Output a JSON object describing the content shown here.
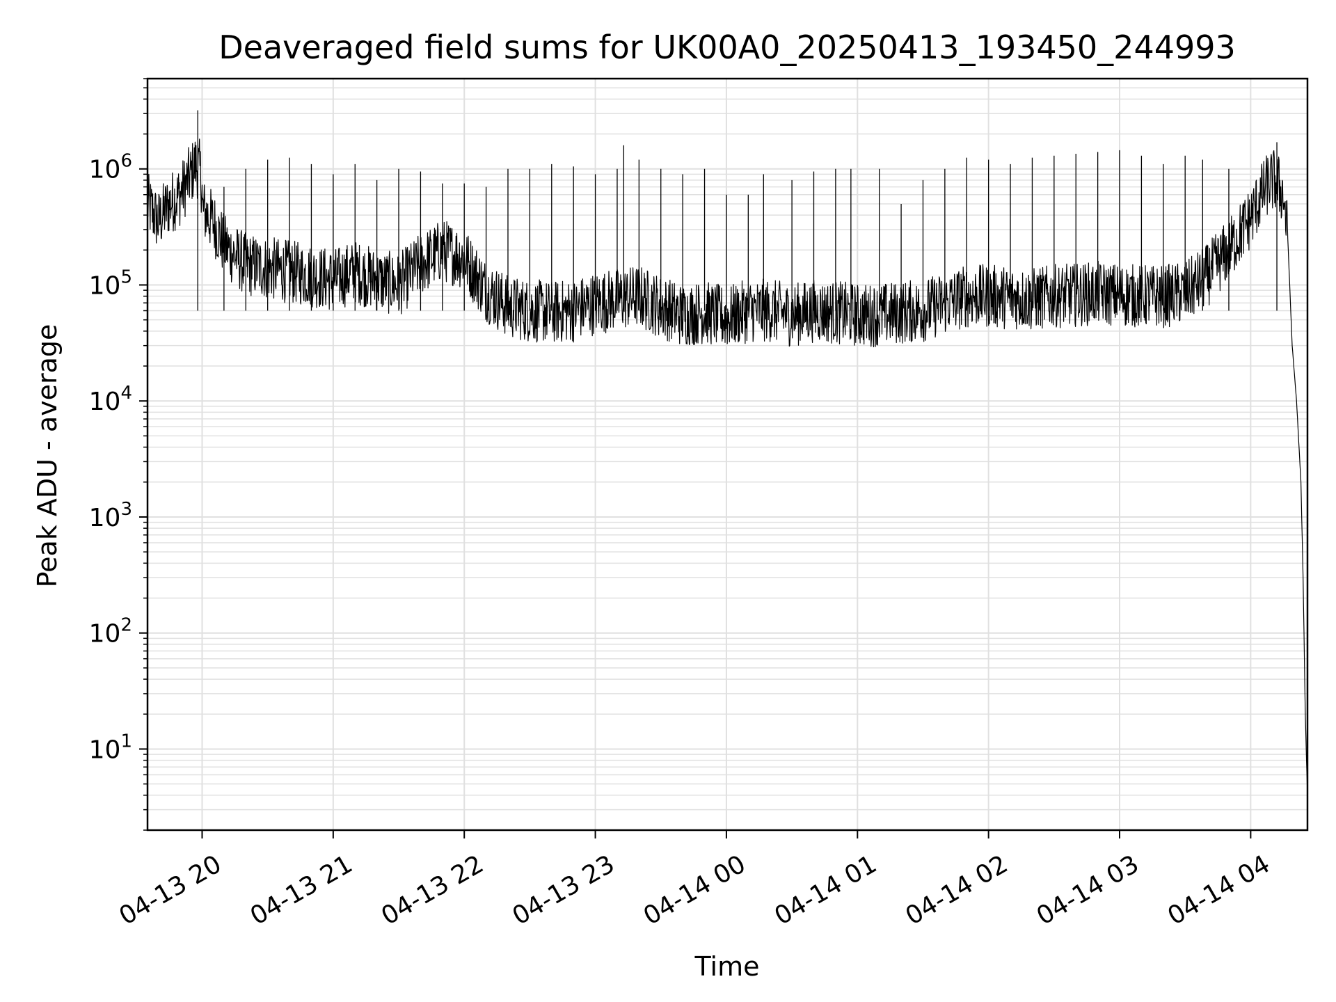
{
  "chart_data": {
    "type": "line",
    "title": "Deaveraged field sums for UK00A0_20250413_193450_244993",
    "xlabel": "Time",
    "ylabel": "Peak ADU - average",
    "yscale": "log",
    "grid": "major and minor",
    "legend": "none",
    "colors": {
      "line": "#000000",
      "grid": "#e0e0e0",
      "background": "#ffffff",
      "frame": "#000000"
    },
    "xlim": [
      "2025-04-13 19:35",
      "2025-04-14 04:26"
    ],
    "ylim": [
      2,
      6000000
    ],
    "x_ticks": [
      {
        "t": "2025-04-13 20:00",
        "label": "04-13 20"
      },
      {
        "t": "2025-04-13 21:00",
        "label": "04-13 21"
      },
      {
        "t": "2025-04-13 22:00",
        "label": "04-13 22"
      },
      {
        "t": "2025-04-13 23:00",
        "label": "04-13 23"
      },
      {
        "t": "2025-04-14 00:00",
        "label": "04-14 00"
      },
      {
        "t": "2025-04-14 01:00",
        "label": "04-14 01"
      },
      {
        "t": "2025-04-14 02:00",
        "label": "04-14 02"
      },
      {
        "t": "2025-04-14 03:00",
        "label": "04-14 03"
      },
      {
        "t": "2025-04-14 04:00",
        "label": "04-14 04"
      }
    ],
    "y_ticks": [
      {
        "value": 10,
        "base": "10",
        "exp": "1"
      },
      {
        "value": 100,
        "base": "10",
        "exp": "2"
      },
      {
        "value": 1000,
        "base": "10",
        "exp": "3"
      },
      {
        "value": 10000,
        "base": "10",
        "exp": "4"
      },
      {
        "value": 100000,
        "base": "10",
        "exp": "5"
      },
      {
        "value": 1000000,
        "base": "10",
        "exp": "6"
      }
    ],
    "series": [
      {
        "x": [
          "2025-04-13 19:35",
          "2025-04-13 19:40",
          "2025-04-13 19:45",
          "2025-04-13 19:50",
          "2025-04-13 19:55",
          "2025-04-13 19:57",
          "2025-04-13 19:59",
          "2025-04-13 20:00",
          "2025-04-13 20:00",
          "2025-04-13 20:05",
          "2025-04-13 20:10",
          "2025-04-13 20:15",
          "2025-04-13 20:20",
          "2025-04-13 20:30",
          "2025-04-13 20:40",
          "2025-04-13 20:50",
          "2025-04-13 21:00",
          "2025-04-13 21:10",
          "2025-04-13 21:20",
          "2025-04-13 21:30",
          "2025-04-13 21:40",
          "2025-04-13 21:50",
          "2025-04-13 22:00",
          "2025-04-13 22:10",
          "2025-04-13 22:20",
          "2025-04-13 22:30",
          "2025-04-13 22:40",
          "2025-04-13 22:50",
          "2025-04-13 23:00",
          "2025-04-13 23:10",
          "2025-04-13 23:20",
          "2025-04-13 23:30",
          "2025-04-13 23:40",
          "2025-04-13 23:50",
          "2025-04-14 00:00",
          "2025-04-14 00:10",
          "2025-04-14 00:20",
          "2025-04-14 00:30",
          "2025-04-14 00:40",
          "2025-04-14 00:50",
          "2025-04-14 01:00",
          "2025-04-14 01:10",
          "2025-04-14 01:20",
          "2025-04-14 01:30",
          "2025-04-14 01:40",
          "2025-04-14 01:50",
          "2025-04-14 02:00",
          "2025-04-14 02:10",
          "2025-04-14 02:20",
          "2025-04-14 02:30",
          "2025-04-14 02:40",
          "2025-04-14 02:50",
          "2025-04-14 03:00",
          "2025-04-14 03:10",
          "2025-04-14 03:20",
          "2025-04-14 03:30",
          "2025-04-14 03:40",
          "2025-04-14 03:50",
          "2025-04-14 04:00",
          "2025-04-14 04:05",
          "2025-04-14 04:08",
          "2025-04-14 04:11",
          "2025-04-14 04:13",
          "2025-04-14 04:15",
          "2025-04-14 04:17",
          "2025-04-14 04:19",
          "2025-04-14 04:21",
          "2025-04-14 04:23",
          "2025-04-14 04:24",
          "2025-04-14 04:25",
          "2025-04-14 04:26"
        ],
        "y": [
          500000,
          350000,
          500000,
          600000,
          900000,
          1100000,
          950000,
          700000,
          450000,
          350000,
          220000,
          180000,
          150000,
          140000,
          130000,
          120000,
          110000,
          130000,
          110000,
          100000,
          150000,
          200000,
          170000,
          90000,
          65000,
          60000,
          58000,
          60000,
          70000,
          75000,
          80000,
          65000,
          55000,
          58000,
          52000,
          60000,
          60000,
          55000,
          60000,
          58000,
          55000,
          55000,
          58000,
          60000,
          70000,
          80000,
          80000,
          78000,
          75000,
          80000,
          82000,
          85000,
          82000,
          80000,
          80000,
          85000,
          120000,
          200000,
          380000,
          600000,
          750000,
          800000,
          700000,
          600000,
          250000,
          30000,
          10000,
          2000,
          300,
          20,
          4
        ]
      }
    ],
    "spikes": [
      {
        "t": "2025-04-13 19:58",
        "y": 3200000
      },
      {
        "t": "2025-04-13 20:10",
        "y": 700000
      },
      {
        "t": "2025-04-13 20:20",
        "y": 1000000
      },
      {
        "t": "2025-04-13 20:30",
        "y": 1200000
      },
      {
        "t": "2025-04-13 20:40",
        "y": 1250000
      },
      {
        "t": "2025-04-13 20:50",
        "y": 1100000
      },
      {
        "t": "2025-04-13 21:00",
        "y": 900000
      },
      {
        "t": "2025-04-13 21:10",
        "y": 1100000
      },
      {
        "t": "2025-04-13 21:20",
        "y": 800000
      },
      {
        "t": "2025-04-13 21:30",
        "y": 1000000
      },
      {
        "t": "2025-04-13 21:40",
        "y": 950000
      },
      {
        "t": "2025-04-13 21:50",
        "y": 750000
      },
      {
        "t": "2025-04-13 22:00",
        "y": 750000
      },
      {
        "t": "2025-04-13 22:10",
        "y": 700000
      },
      {
        "t": "2025-04-13 22:20",
        "y": 1000000
      },
      {
        "t": "2025-04-13 22:30",
        "y": 1000000
      },
      {
        "t": "2025-04-13 22:40",
        "y": 1100000
      },
      {
        "t": "2025-04-13 22:50",
        "y": 1050000
      },
      {
        "t": "2025-04-13 23:00",
        "y": 900000
      },
      {
        "t": "2025-04-13 23:10",
        "y": 1000000
      },
      {
        "t": "2025-04-13 23:13",
        "y": 1600000
      },
      {
        "t": "2025-04-13 23:20",
        "y": 1200000
      },
      {
        "t": "2025-04-13 23:30",
        "y": 1000000
      },
      {
        "t": "2025-04-13 23:40",
        "y": 900000
      },
      {
        "t": "2025-04-13 23:50",
        "y": 1000000
      },
      {
        "t": "2025-04-14 00:00",
        "y": 600000
      },
      {
        "t": "2025-04-14 00:10",
        "y": 600000
      },
      {
        "t": "2025-04-14 00:17",
        "y": 900000
      },
      {
        "t": "2025-04-14 00:30",
        "y": 800000
      },
      {
        "t": "2025-04-14 00:40",
        "y": 950000
      },
      {
        "t": "2025-04-14 00:50",
        "y": 1000000
      },
      {
        "t": "2025-04-14 00:57",
        "y": 1000000
      },
      {
        "t": "2025-04-14 01:10",
        "y": 1000000
      },
      {
        "t": "2025-04-14 01:20",
        "y": 500000
      },
      {
        "t": "2025-04-14 01:30",
        "y": 800000
      },
      {
        "t": "2025-04-14 01:40",
        "y": 1000000
      },
      {
        "t": "2025-04-14 01:50",
        "y": 1250000
      },
      {
        "t": "2025-04-14 02:00",
        "y": 1200000
      },
      {
        "t": "2025-04-14 02:10",
        "y": 1100000
      },
      {
        "t": "2025-04-14 02:20",
        "y": 1250000
      },
      {
        "t": "2025-04-14 02:30",
        "y": 1300000
      },
      {
        "t": "2025-04-14 02:40",
        "y": 1350000
      },
      {
        "t": "2025-04-14 02:50",
        "y": 1400000
      },
      {
        "t": "2025-04-14 03:00",
        "y": 1450000
      },
      {
        "t": "2025-04-14 03:10",
        "y": 1300000
      },
      {
        "t": "2025-04-14 03:20",
        "y": 1100000
      },
      {
        "t": "2025-04-14 03:30",
        "y": 1300000
      },
      {
        "t": "2025-04-14 03:38",
        "y": 1200000
      },
      {
        "t": "2025-04-14 03:50",
        "y": 1000000
      },
      {
        "t": "2025-04-14 04:12",
        "y": 1700000
      }
    ]
  }
}
